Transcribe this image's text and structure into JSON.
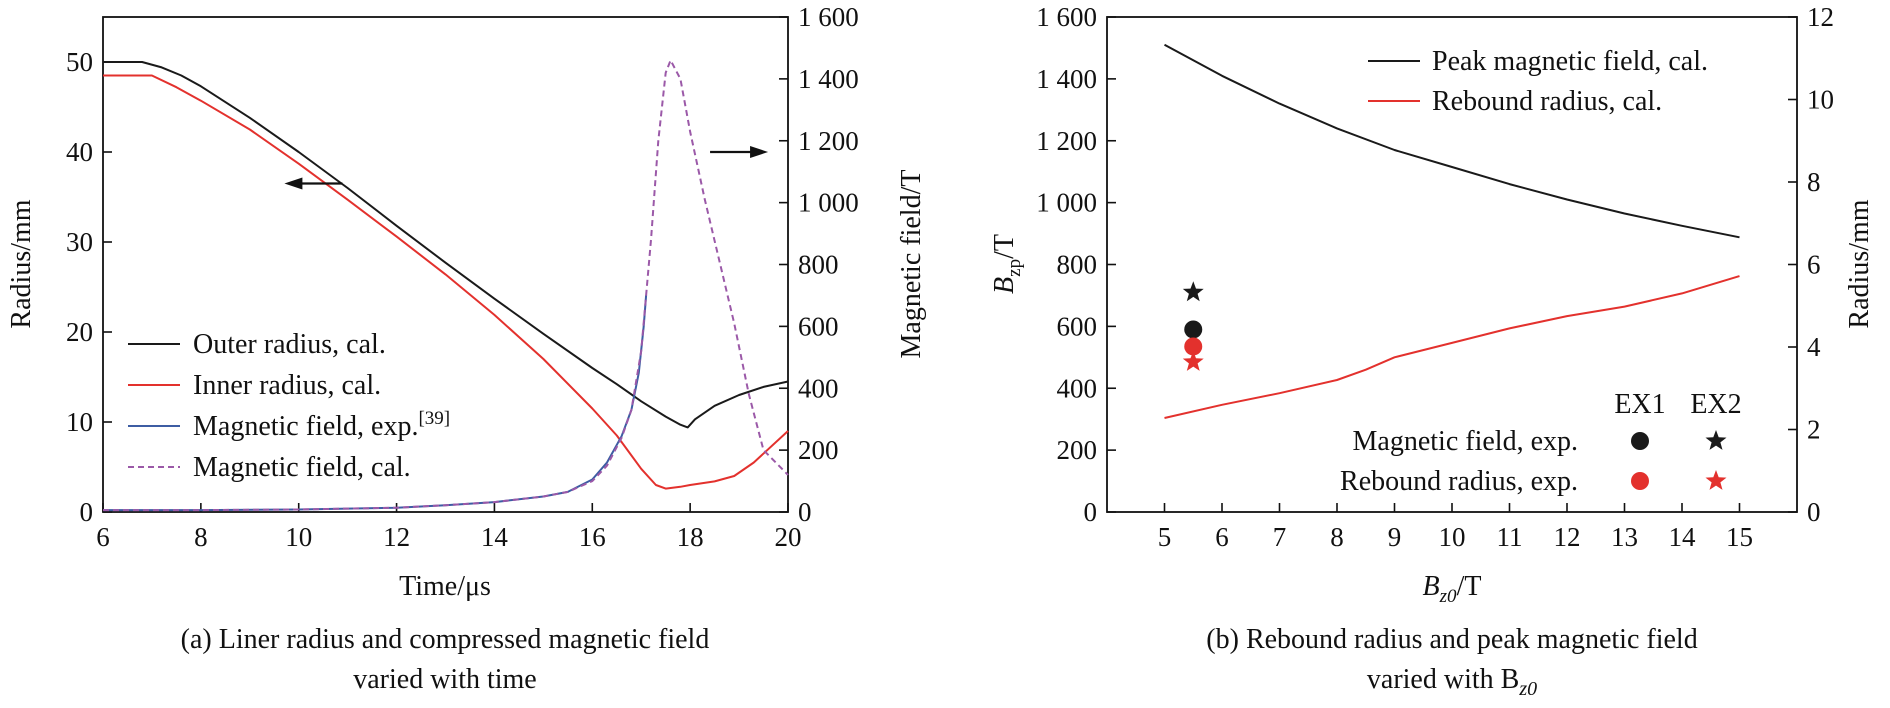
{
  "chart_data": [
    {
      "type": "line",
      "caption": [
        "(a) Liner radius and compressed magnetic field",
        "varied with time"
      ],
      "xlabel": "Time/μs",
      "ylabel_left": "Radius/mm",
      "ylabel_right": "Magnetic field/T",
      "xlim": [
        6,
        20
      ],
      "ylim_left": [
        0,
        55
      ],
      "ylim_right": [
        0,
        1600
      ],
      "x_ticks": [
        6,
        8,
        10,
        12,
        14,
        16,
        18,
        20
      ],
      "x_tick_labels": [
        "6",
        "8",
        "10",
        "12",
        "14",
        "16",
        "18",
        "20"
      ],
      "y_left_ticks": [
        0,
        10,
        20,
        30,
        40,
        50
      ],
      "y_left_tick_labels": [
        "0",
        "10",
        "20",
        "30",
        "40",
        "50"
      ],
      "y_right_ticks": [
        0,
        200,
        400,
        600,
        800,
        1000,
        1200,
        1400,
        1600
      ],
      "y_right_tick_labels": [
        "0",
        "200",
        "400",
        "600",
        "800",
        "1 000",
        "1 200",
        "1 400",
        "1 600"
      ],
      "legend_position": "lower-left",
      "series": [
        {
          "name": "Outer radius, cal.",
          "axis": "left",
          "color": "#1a1a1a",
          "dash": "solid",
          "x": [
            6,
            6.8,
            7.2,
            7.6,
            8,
            9,
            10,
            11,
            12,
            13,
            14,
            15,
            16,
            16.5,
            17,
            17.5,
            17.8,
            17.95,
            18.1,
            18.5,
            19,
            19.5,
            20
          ],
          "y": [
            50,
            50,
            49.4,
            48.5,
            47.3,
            43.8,
            40,
            36,
            31.8,
            27.7,
            23.7,
            19.8,
            16,
            14.2,
            12.3,
            10.6,
            9.7,
            9.4,
            10.3,
            11.8,
            13,
            13.9,
            14.5
          ]
        },
        {
          "name": "Inner radius, cal.",
          "axis": "left",
          "color": "#e3312d",
          "dash": "solid",
          "x": [
            6,
            7,
            7.5,
            8,
            9,
            10,
            11,
            12,
            13,
            14,
            15,
            16,
            16.5,
            17,
            17.3,
            17.5,
            17.8,
            18,
            18.5,
            18.9,
            19.3,
            20
          ],
          "y": [
            48.5,
            48.5,
            47.2,
            45.7,
            42.5,
            38.7,
            34.7,
            30.6,
            26.4,
            21.9,
            17,
            11.5,
            8.5,
            4.8,
            3,
            2.6,
            2.8,
            3,
            3.4,
            4,
            5.5,
            9
          ]
        },
        {
          "name": "Magnetic field, exp.",
          "name_sup": "[39]",
          "axis": "right",
          "color": "#3d5da3",
          "dash": "solid",
          "x": [
            6,
            8,
            10,
            12,
            13,
            14,
            15,
            15.5,
            16,
            16.3,
            16.6,
            16.8,
            16.95,
            17.05,
            17.1
          ],
          "y": [
            6,
            6,
            8,
            14,
            22,
            32,
            50,
            65,
            105,
            160,
            245,
            330,
            450,
            600,
            700
          ]
        },
        {
          "name": "Magnetic field, cal.",
          "axis": "right",
          "color": "#9b59a8",
          "dash": "dashed",
          "x": [
            6,
            8,
            10,
            12,
            13,
            14,
            15,
            15.5,
            16,
            16.3,
            16.6,
            16.8,
            17,
            17.2,
            17.35,
            17.5,
            17.6,
            17.8,
            18,
            18.3,
            18.6,
            18.9,
            19.2,
            19.5,
            20
          ],
          "y": [
            6,
            6,
            8,
            14,
            22,
            32,
            50,
            65,
            100,
            150,
            240,
            330,
            520,
            880,
            1200,
            1420,
            1460,
            1400,
            1230,
            1010,
            810,
            610,
            380,
            200,
            120
          ]
        }
      ],
      "annotations": [
        {
          "type": "arrow",
          "direction": "left",
          "x": 10.3,
          "y_left": 36.5
        },
        {
          "type": "arrow",
          "direction": "right",
          "x": 19.0,
          "y_left": 40
        }
      ]
    },
    {
      "type": "line",
      "caption": [
        "(b) Rebound radius and peak magnetic field",
        "varied with B",
        "z0"
      ],
      "xlabel": {
        "base": "B",
        "sub": "z0",
        "suffix": "/T"
      },
      "ylabel_left": {
        "base": "B",
        "sub": "zp",
        "suffix": "/T"
      },
      "ylabel_right": "Radius/mm",
      "xlim": [
        4,
        16
      ],
      "ylim_left": [
        0,
        1600
      ],
      "ylim_right": [
        0,
        12
      ],
      "x_ticks": [
        5,
        6,
        7,
        8,
        9,
        10,
        11,
        12,
        13,
        14,
        15
      ],
      "x_tick_labels": [
        "5",
        "6",
        "7",
        "8",
        "9",
        "10",
        "11",
        "12",
        "13",
        "14",
        "15"
      ],
      "y_left_ticks": [
        0,
        200,
        400,
        600,
        800,
        1000,
        1200,
        1400,
        1600
      ],
      "y_left_tick_labels": [
        "0",
        "200",
        "400",
        "600",
        "800",
        "1 000",
        "1 200",
        "1 400",
        "1 600"
      ],
      "y_right_ticks": [
        0,
        2,
        4,
        6,
        8,
        10,
        12
      ],
      "y_right_tick_labels": [
        "0",
        "2",
        "4",
        "6",
        "8",
        "10",
        "12"
      ],
      "legend_position": "top-right",
      "series": [
        {
          "name": "Peak magnetic field, cal.",
          "axis": "left",
          "color": "#1a1a1a",
          "dash": "solid",
          "x": [
            5,
            6,
            7,
            8,
            9,
            10,
            11,
            12,
            13,
            14,
            15
          ],
          "y": [
            1510,
            1410,
            1320,
            1240,
            1170,
            1115,
            1060,
            1010,
            965,
            925,
            888
          ]
        },
        {
          "name": "Rebound radius, cal.",
          "axis": "right",
          "color": "#e3312d",
          "dash": "solid",
          "x": [
            5,
            6,
            7,
            8,
            8.5,
            9,
            10,
            11,
            12,
            13,
            14,
            15
          ],
          "y": [
            2.28,
            2.6,
            2.88,
            3.2,
            3.45,
            3.75,
            4.1,
            4.45,
            4.75,
            4.98,
            5.3,
            5.72
          ]
        }
      ],
      "exp_table": {
        "columns": [
          "EX1",
          "EX2"
        ],
        "rows": [
          {
            "label": "Magnetic field, exp.",
            "color": "#1a1a1a",
            "markers": [
              "circle",
              "star"
            ]
          },
          {
            "label": "Rebound radius, exp.",
            "color": "#e3312d",
            "markers": [
              "circle",
              "star"
            ]
          }
        ]
      },
      "points": [
        {
          "series": "Magnetic field, exp.",
          "marker": "star",
          "color": "#1a1a1a",
          "x": 5.5,
          "y": 710,
          "axis": "left"
        },
        {
          "series": "Magnetic field, exp.",
          "marker": "circle",
          "color": "#1a1a1a",
          "x": 5.5,
          "y": 590,
          "axis": "left"
        },
        {
          "series": "Rebound radius, exp.",
          "marker": "circle",
          "color": "#e3312d",
          "x": 5.5,
          "y": 535,
          "axis": "left"
        },
        {
          "series": "Rebound radius, exp.",
          "marker": "star",
          "color": "#e3312d",
          "x": 5.5,
          "y": 485,
          "axis": "left"
        }
      ]
    }
  ]
}
